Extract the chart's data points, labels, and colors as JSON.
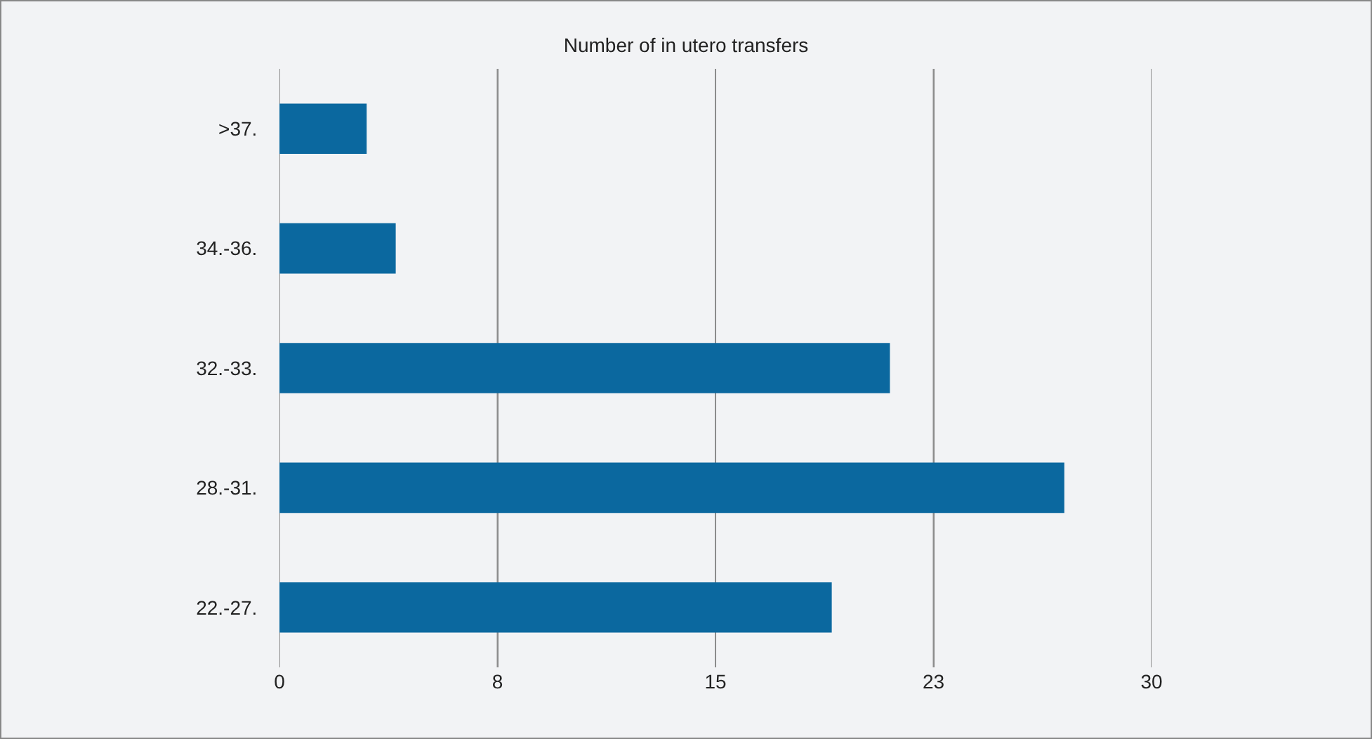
{
  "chart_data": {
    "type": "bar",
    "orientation": "horizontal",
    "title": "Number of in utero transfers",
    "categories": [
      ">37.",
      "34.-36.",
      "32.-33.",
      "28.-31.",
      "22.-27."
    ],
    "values": [
      3,
      4,
      21,
      27,
      19
    ],
    "color": "#0b689f",
    "xlim": [
      0,
      30
    ],
    "xticks": [
      0,
      {
        "value": 7.5,
        "label": "8"
      },
      15,
      {
        "value": 22.5,
        "label": "23"
      },
      30
    ],
    "grid": "x"
  }
}
